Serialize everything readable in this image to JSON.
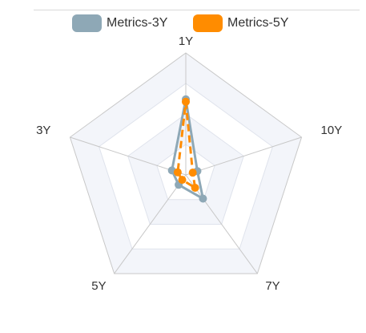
{
  "chart_data": {
    "type": "radar",
    "indicators": [
      "1Y",
      "10Y",
      "7Y",
      "5Y",
      "3Y"
    ],
    "max": 100,
    "split_number": 4,
    "series": [
      {
        "name": "Metrics-3Y",
        "color": "#8ea8b6",
        "line_style": "solid",
        "values": [
          62,
          10,
          24,
          10,
          12
        ]
      },
      {
        "name": "Metrics-5Y",
        "color": "#ff8c00",
        "line_style": "dashed",
        "values": [
          60,
          6,
          13,
          5,
          7
        ]
      }
    ],
    "split_area_colors": [
      "#ffffff",
      "#f3f5fa"
    ],
    "grid_line_color": "#dfe3ec",
    "axis_line_color": "#c8c8c8"
  }
}
